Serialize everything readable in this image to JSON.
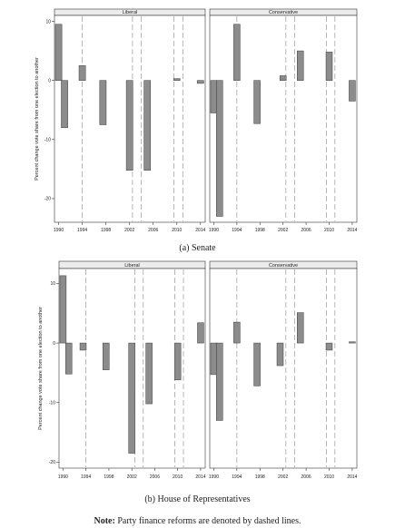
{
  "captions": {
    "senate": "(a) Senate",
    "house": "(b) House of Representatives",
    "note_label": "Note:",
    "note_text": "Party finance reforms are denoted by dashed lines."
  },
  "chart_data": [
    {
      "type": "bar",
      "id": "senate",
      "ylabel": "Percent change vote share from one election to another",
      "ylim": [
        -24,
        11
      ],
      "yticks": [
        10,
        0,
        -10,
        -20
      ],
      "x_ticks": [
        1990,
        1994,
        1998,
        2002,
        2006,
        2010,
        2014
      ],
      "xlim": [
        1989.3,
        2014.8
      ],
      "bar_width": 1.1,
      "reforms": [
        1994,
        2002.5,
        2004,
        2009.5,
        2011
      ],
      "panels": [
        {
          "title": "Liberal",
          "x": [
            1990,
            1991,
            1994,
            1997.5,
            2002,
            2005
          ],
          "values": [
            9.5,
            -8,
            2.5,
            -7.5,
            -15.2,
            -15.2
          ]
        },
        {
          "title": "Conservative",
          "x": [
            1990,
            1991,
            1994,
            1997.5,
            2002,
            2005
          ],
          "values": [
            -5.5,
            -23,
            9.5,
            -7.3,
            0.8,
            5
          ]
        }
      ],
      "panel_extra": [
        {
          "x": [
            2010,
            2014
          ],
          "values": [
            0.3,
            -0.5
          ]
        },
        {
          "x": [
            2010,
            2014
          ],
          "values": [
            4.8,
            -3.5
          ]
        }
      ]
    },
    {
      "type": "bar",
      "id": "house",
      "ylabel": "Percent change vote share from one election to another",
      "ylim": [
        -21,
        12.5
      ],
      "yticks": [
        10,
        0,
        -10,
        -20
      ],
      "x_ticks": [
        1990,
        1994,
        1998,
        2002,
        2006,
        2010,
        2014
      ],
      "xlim": [
        1989.3,
        2014.8
      ],
      "bar_width": 1.1,
      "reforms": [
        1994,
        2002.5,
        2004,
        2009.5,
        2011
      ],
      "panels": [
        {
          "title": "Liberal",
          "x": [
            1990,
            1991,
            1993.5,
            1997.5,
            2002,
            2005
          ],
          "values": [
            11.3,
            -5.2,
            -1.2,
            -4.5,
            -18.5,
            -10.2
          ]
        },
        {
          "title": "Conservative",
          "x": [
            1990,
            1991,
            1994,
            1997.5,
            2001.5,
            2005
          ],
          "values": [
            -5.3,
            -13,
            3.5,
            -7.2,
            -3.8,
            5.1
          ]
        }
      ],
      "panel_extra": [
        {
          "x": [
            2010,
            2014
          ],
          "values": [
            -6.2,
            3.4
          ]
        },
        {
          "x": [
            2010,
            2014
          ],
          "values": [
            -1.2,
            0.2
          ]
        }
      ]
    }
  ]
}
